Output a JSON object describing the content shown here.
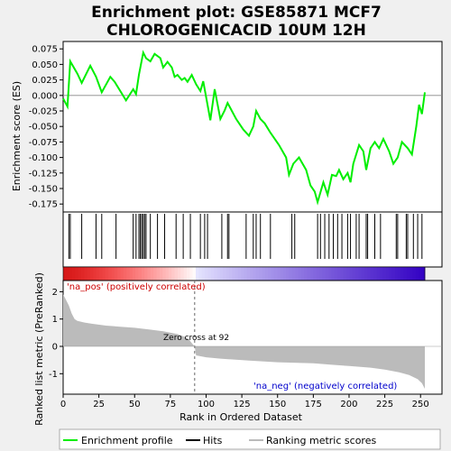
{
  "title_line1": "Enrichment plot: GSE85871 MCF7",
  "title_line2": "CHLOROGENICACID 10UM 12H",
  "annotations": {
    "pos_label": "'na_pos' (positively correlated)",
    "neg_label": "'na_neg' (negatively correlated)",
    "zero_cross": "Zero cross at 92"
  },
  "legend": {
    "items": [
      {
        "label": "Enrichment profile",
        "color": "#00ee00"
      },
      {
        "label": "Hits",
        "color": "#000000"
      },
      {
        "label": "Ranking metric scores",
        "color": "#bbbbbb"
      }
    ]
  },
  "colors": {
    "profile": "#00ee00",
    "hits": "#000000",
    "metric": "#bbbbbb",
    "zero_line": "#888888"
  },
  "chart_data": [
    {
      "type": "line",
      "name": "enrichment",
      "ylabel": "Enrichment score (ES)",
      "ylim": [
        -0.18,
        0.08
      ],
      "yticks": [
        0.075,
        0.05,
        0.025,
        0.0,
        -0.025,
        -0.05,
        -0.075,
        -0.1,
        -0.125,
        -0.15,
        -0.175
      ],
      "ytick_labels": [
        "0.075",
        "0.050",
        "0.025",
        "0.000",
        "-0.025",
        "-0.050",
        "-0.075",
        "-0.100",
        "-0.125",
        "-0.150",
        "-0.175"
      ],
      "x": [
        0,
        3,
        5,
        10,
        13,
        19,
        23,
        27,
        33,
        36,
        44,
        49,
        51,
        53,
        56,
        58,
        61,
        64,
        68,
        70,
        73,
        76,
        78,
        80,
        83,
        85,
        87,
        90,
        93,
        96,
        98,
        103,
        106,
        110,
        113,
        115,
        121,
        126,
        130,
        133,
        135,
        138,
        141,
        145,
        151,
        156,
        158,
        161,
        165,
        170,
        173,
        176,
        178,
        182,
        185,
        188,
        191,
        193,
        196,
        199,
        201,
        203,
        207,
        210,
        212,
        215,
        218,
        221,
        224,
        228,
        231,
        234,
        237,
        241,
        244,
        247,
        249,
        251,
        253
      ],
      "y": [
        -0.005,
        -0.018,
        0.055,
        0.035,
        0.02,
        0.048,
        0.03,
        0.005,
        0.03,
        0.022,
        -0.008,
        0.01,
        0.002,
        0.033,
        0.069,
        0.06,
        0.055,
        0.067,
        0.06,
        0.045,
        0.054,
        0.045,
        0.03,
        0.033,
        0.025,
        0.028,
        0.022,
        0.033,
        0.018,
        0.007,
        0.023,
        -0.04,
        0.01,
        -0.038,
        -0.024,
        -0.012,
        -0.038,
        -0.055,
        -0.065,
        -0.05,
        -0.025,
        -0.038,
        -0.045,
        -0.06,
        -0.08,
        -0.1,
        -0.128,
        -0.11,
        -0.1,
        -0.12,
        -0.145,
        -0.155,
        -0.172,
        -0.14,
        -0.16,
        -0.128,
        -0.13,
        -0.12,
        -0.135,
        -0.125,
        -0.14,
        -0.11,
        -0.08,
        -0.09,
        -0.12,
        -0.085,
        -0.075,
        -0.085,
        -0.07,
        -0.09,
        -0.11,
        -0.1,
        -0.075,
        -0.085,
        -0.095,
        -0.05,
        -0.015,
        -0.03,
        0.005
      ]
    },
    {
      "type": "scatter",
      "name": "hits",
      "x": [
        4,
        5,
        13,
        23,
        27,
        37,
        49,
        51,
        53,
        54,
        55,
        56,
        57,
        58,
        61,
        66,
        71,
        79,
        84,
        89,
        96,
        99,
        101,
        111,
        115,
        116,
        128,
        133,
        135,
        138,
        145,
        160,
        162,
        178,
        180,
        183,
        186,
        189,
        192,
        195,
        199,
        201,
        205,
        207,
        212,
        213,
        218,
        222,
        233,
        234,
        240,
        241,
        245,
        248,
        251
      ]
    },
    {
      "type": "bar",
      "name": "ranking_metric",
      "ylabel": "Ranked list metric (PreRanked)",
      "xlabel": "Rank in Ordered Dataset",
      "xlim": [
        0,
        265
      ],
      "ylim": [
        -1.6,
        2.2
      ],
      "xticks": [
        0,
        25,
        50,
        75,
        100,
        125,
        150,
        175,
        200,
        225,
        250
      ],
      "yticks": [
        2,
        1,
        0,
        -1
      ],
      "points": [
        [
          0,
          1.9
        ],
        [
          2,
          1.7
        ],
        [
          4,
          1.5
        ],
        [
          6,
          1.2
        ],
        [
          8,
          1.0
        ],
        [
          10,
          0.93
        ],
        [
          15,
          0.87
        ],
        [
          20,
          0.83
        ],
        [
          30,
          0.76
        ],
        [
          40,
          0.72
        ],
        [
          50,
          0.68
        ],
        [
          60,
          0.62
        ],
        [
          70,
          0.55
        ],
        [
          80,
          0.45
        ],
        [
          85,
          0.35
        ],
        [
          88,
          0.25
        ],
        [
          90,
          0.12
        ],
        [
          92,
          0.0
        ],
        [
          93,
          -0.33
        ],
        [
          100,
          -0.4
        ],
        [
          110,
          -0.45
        ],
        [
          130,
          -0.52
        ],
        [
          150,
          -0.58
        ],
        [
          175,
          -0.62
        ],
        [
          190,
          -0.68
        ],
        [
          200,
          -0.72
        ],
        [
          215,
          -0.78
        ],
        [
          225,
          -0.85
        ],
        [
          235,
          -0.95
        ],
        [
          242,
          -1.05
        ],
        [
          248,
          -1.2
        ],
        [
          251,
          -1.35
        ],
        [
          253,
          -1.55
        ]
      ]
    }
  ]
}
